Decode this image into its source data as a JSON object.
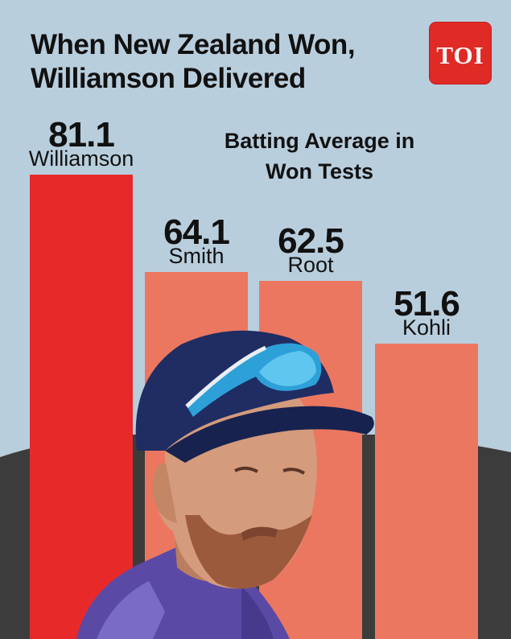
{
  "header": {
    "title_line1": "When New Zealand Won,",
    "title_line2": "Williamson Delivered",
    "logo_text": "TOI"
  },
  "chart_data": {
    "type": "bar",
    "subtitle_line1": "Batting Average in",
    "subtitle_line2": "Won Tests",
    "categories": [
      "Williamson",
      "Smith",
      "Root",
      "Kohli"
    ],
    "values": [
      81.1,
      64.1,
      62.5,
      51.6
    ],
    "value_labels": [
      "81.1",
      "64.1",
      "62.5",
      "51.6"
    ],
    "colors": [
      "#e8292a",
      "#ec7760",
      "#ec7760",
      "#ec7760"
    ],
    "ylim": [
      0,
      81.1
    ],
    "grid": false,
    "legend": "none"
  },
  "colors": {
    "background": "#b9cedd",
    "ground": "#3c3c3c",
    "highlight_bar": "#e8292a",
    "other_bars": "#ec7760",
    "logo": "#e02a26"
  },
  "image": {
    "subject": "player-photo"
  }
}
